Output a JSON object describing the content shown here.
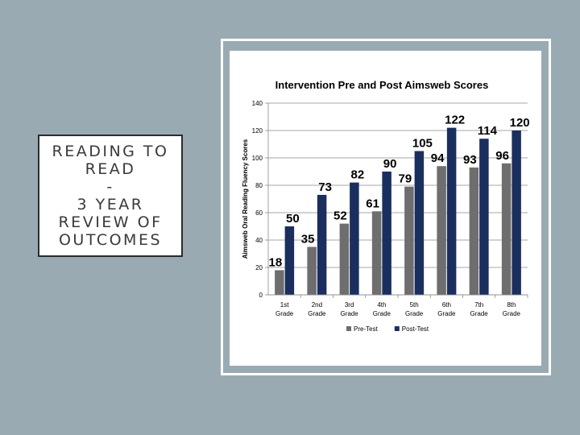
{
  "slide_title": {
    "lines": [
      "READING TO",
      "READ",
      "-",
      "3 YEAR",
      "REVIEW OF",
      "OUTCOMES"
    ]
  },
  "chart_data": {
    "type": "bar",
    "title": "Intervention Pre and Post Aimsweb Scores",
    "ylabel": "Aimsweb Oral Reading Fluency Scores",
    "xlabel": "",
    "ylim": [
      0,
      140
    ],
    "yticks": [
      0,
      20,
      40,
      60,
      80,
      100,
      120,
      140
    ],
    "categories": [
      [
        "1st",
        "Grade"
      ],
      [
        "2nd",
        "Grade"
      ],
      [
        "3rd",
        "Grade"
      ],
      [
        "4th",
        "Grade"
      ],
      [
        "5th",
        "Grade"
      ],
      [
        "6th",
        "Grade"
      ],
      [
        "7th",
        "Grade"
      ],
      [
        "8th",
        "Grade"
      ]
    ],
    "series": [
      {
        "name": "Pre-Test",
        "color": "#6e6e6e",
        "values": [
          18,
          35,
          52,
          61,
          79,
          94,
          93,
          96
        ]
      },
      {
        "name": "Post-Test",
        "color": "#1a2f5e",
        "values": [
          50,
          73,
          82,
          90,
          105,
          122,
          114,
          120
        ]
      }
    ],
    "legend_position": "bottom",
    "grid": true
  }
}
